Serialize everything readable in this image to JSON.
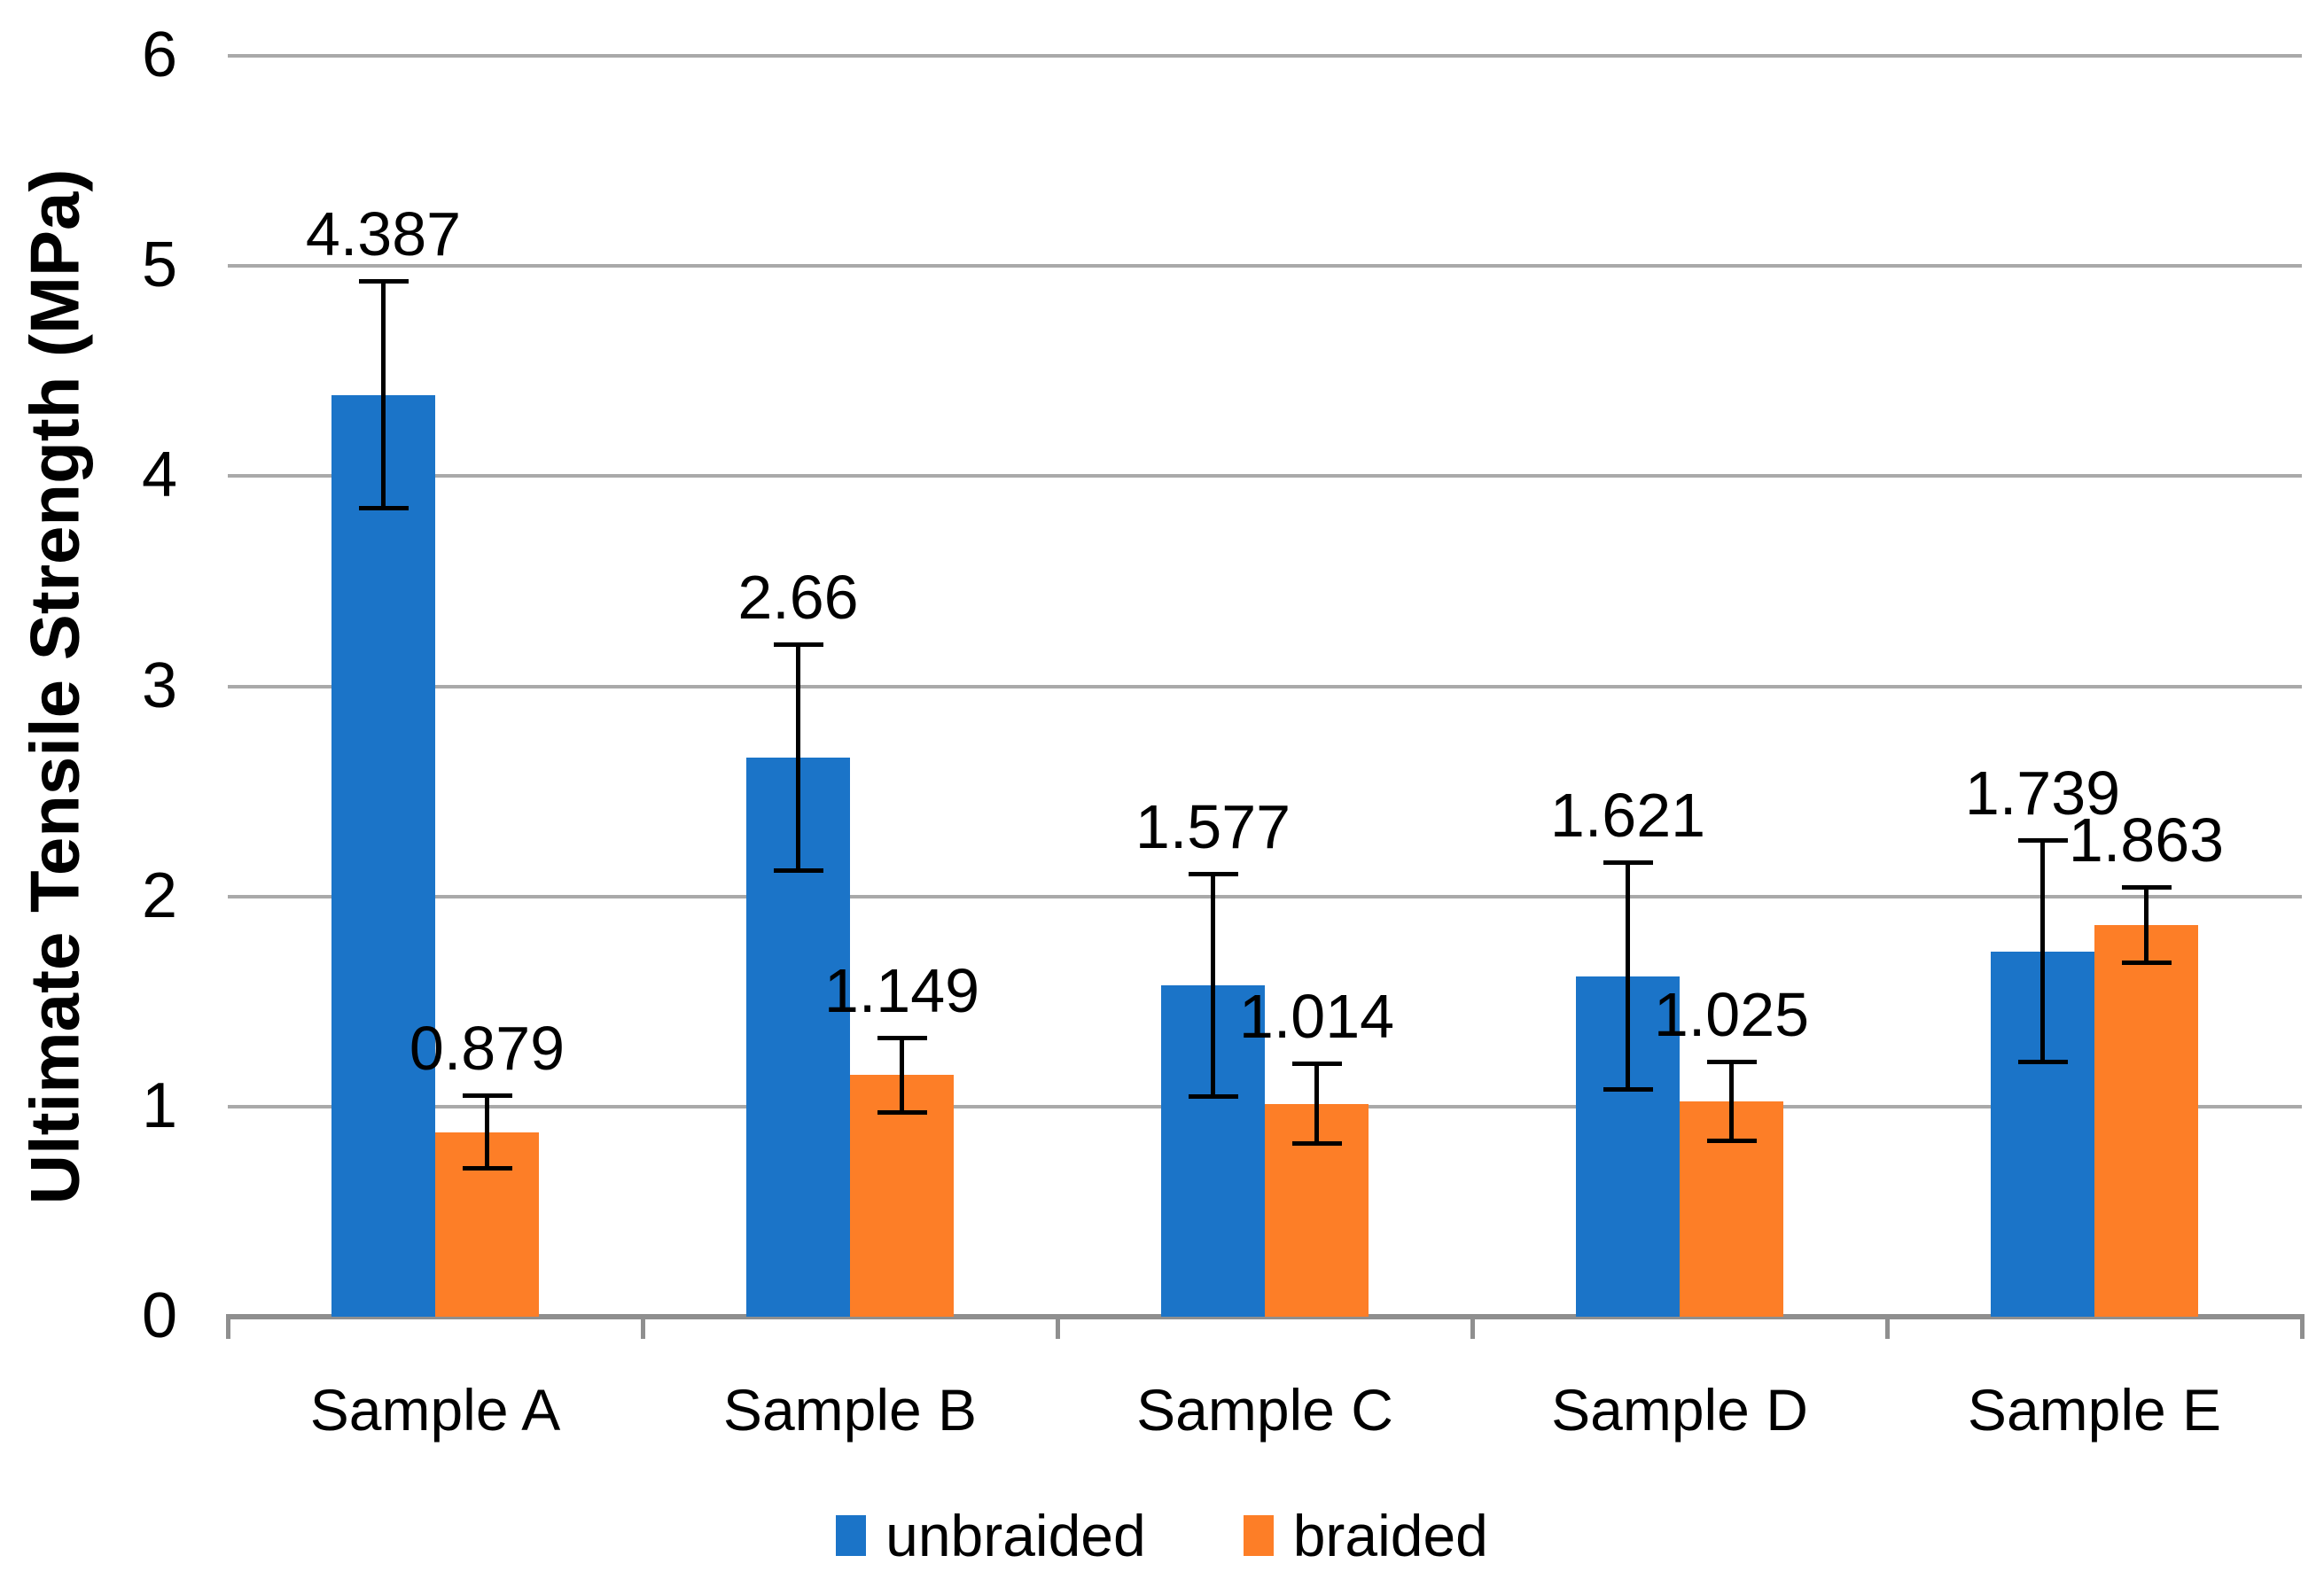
{
  "chart_data": {
    "type": "bar",
    "title": "",
    "ylabel": "Ultimate Tensile Strength (MPa)",
    "xlabel": "",
    "categories": [
      "Sample A",
      "Sample B",
      "Sample C",
      "Sample D",
      "Sample E"
    ],
    "series": [
      {
        "name": "unbraided",
        "color": "#1B74C8",
        "values": [
          4.387,
          2.66,
          1.577,
          1.621,
          1.739
        ],
        "labels": [
          "4.387",
          "2.66",
          "1.577",
          "1.621",
          "1.739"
        ],
        "errors_est": [
          0.54,
          0.54,
          0.53,
          0.54,
          0.53
        ]
      },
      {
        "name": "braided",
        "color": "#FD7E27",
        "values": [
          0.879,
          1.149,
          1.014,
          1.025,
          1.863
        ],
        "labels": [
          "0.879",
          "1.149",
          "1.014",
          "1.025",
          "1.863"
        ],
        "errors_est": [
          0.175,
          0.18,
          0.19,
          0.19,
          0.18
        ]
      }
    ],
    "y_ticks": [
      "0",
      "1",
      "2",
      "3",
      "4",
      "5",
      "6"
    ],
    "ylim": [
      0,
      6
    ],
    "grid": true,
    "error_bars": true,
    "legend_position": "bottom",
    "colors": {
      "gridline": "#a9a9a9",
      "axis": "#8f8f8f",
      "error_bar": "#000000",
      "text": "#000000"
    }
  }
}
